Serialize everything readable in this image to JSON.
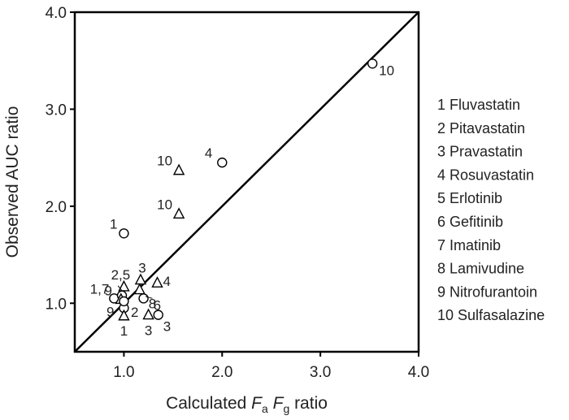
{
  "chart_data": {
    "type": "scatter",
    "xlabel_prefix": "Calculated ",
    "xlabel_fa": "F",
    "xlabel_fa_sub": "a",
    "xlabel_fg": "F",
    "xlabel_fg_sub": "g",
    "xlabel_suffix": " ratio",
    "ylabel": "Observed AUC ratio",
    "xlim": [
      0.5,
      4.0
    ],
    "ylim": [
      0.5,
      4.0
    ],
    "xticks": [
      "1.0",
      "2.0",
      "3.0",
      "4.0"
    ],
    "yticks": [
      "1.0",
      "2.0",
      "3.0",
      "4.0"
    ],
    "reference_line": "y = x",
    "grid": false,
    "legend_position": "right",
    "marker_meaning": {
      "circle": "circle",
      "triangle": "triangle"
    },
    "points": [
      {
        "marker": "circle",
        "x": 3.53,
        "y": 3.47,
        "label": "10"
      },
      {
        "marker": "circle",
        "x": 2.0,
        "y": 2.45,
        "label": "4"
      },
      {
        "marker": "triangle",
        "x": 1.56,
        "y": 2.37,
        "label": "10"
      },
      {
        "marker": "triangle",
        "x": 1.56,
        "y": 1.92,
        "label": "10"
      },
      {
        "marker": "circle",
        "x": 1.0,
        "y": 1.72,
        "label": "1"
      },
      {
        "marker": "triangle",
        "x": 1.0,
        "y": 1.17,
        "label": "2,5"
      },
      {
        "marker": "triangle",
        "x": 1.17,
        "y": 1.24,
        "label": "3"
      },
      {
        "marker": "triangle",
        "x": 1.34,
        "y": 1.21,
        "label": "4"
      },
      {
        "marker": "triangle",
        "x": 1.16,
        "y": 1.14,
        "label": ""
      },
      {
        "marker": "circle",
        "x": 0.9,
        "y": 1.05,
        "label": "1,7"
      },
      {
        "marker": "circle",
        "x": 0.98,
        "y": 1.08,
        "label": "9"
      },
      {
        "marker": "triangle",
        "x": 0.97,
        "y": 1.04,
        "label": ""
      },
      {
        "marker": "circle",
        "x": 1.0,
        "y": 0.95,
        "label": "9"
      },
      {
        "marker": "circle",
        "x": 1.0,
        "y": 1.02,
        "label": ""
      },
      {
        "marker": "triangle",
        "x": 1.0,
        "y": 0.87,
        "label": "1"
      },
      {
        "marker": "circle",
        "x": 1.2,
        "y": 1.05,
        "label": "6"
      },
      {
        "marker": "triangle",
        "x": 1.25,
        "y": 0.88,
        "label": "3"
      },
      {
        "marker": "circle",
        "x": 1.35,
        "y": 0.88,
        "label": "3"
      }
    ],
    "free_annotations": [
      {
        "text": "2",
        "x": 1.11,
        "y": 0.91
      },
      {
        "text": "8",
        "x": 1.29,
        "y": 1.0
      }
    ],
    "legend": [
      "1 Fluvastatin",
      "2 Pitavastatin",
      "3 Pravastatin",
      "4 Rosuvastatin",
      "5 Erlotinib",
      "6 Gefitinib",
      "7 Imatinib",
      "8 Lamivudine",
      "9 Nitrofurantoin",
      "10 Sulfasalazine"
    ]
  }
}
